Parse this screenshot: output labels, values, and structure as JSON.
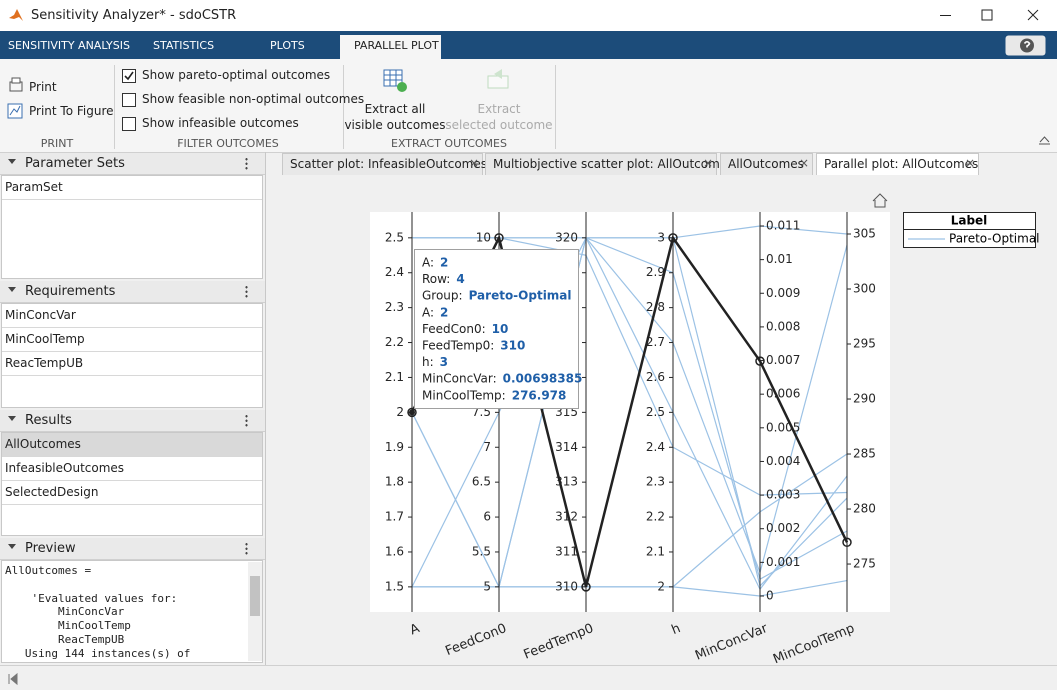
{
  "window": {
    "title": "Sensitivity Analyzer* - sdoCSTR"
  },
  "ribbon": {
    "tabs": [
      "SENSITIVITY ANALYSIS",
      "STATISTICS",
      "PLOTS",
      "PARALLEL PLOT"
    ],
    "active_tab": 3,
    "print": {
      "label": "PRINT",
      "buttons": [
        "Print",
        "Print To Figure"
      ]
    },
    "filter": {
      "label": "FILTER OUTCOMES",
      "options": [
        {
          "text": "Show pareto-optimal outcomes",
          "checked": true
        },
        {
          "text": "Show feasible non-optimal outcomes",
          "checked": false
        },
        {
          "text": "Show infeasible outcomes",
          "checked": false
        }
      ]
    },
    "extract": {
      "label": "EXTRACT OUTCOMES",
      "buttons": [
        {
          "lines": [
            "Extract all",
            "visible outcomes"
          ],
          "enabled": true
        },
        {
          "lines": [
            "Extract",
            "selected outcome"
          ],
          "enabled": false
        }
      ]
    }
  },
  "panels": [
    {
      "title": "Parameter Sets",
      "items": [
        "ParamSet"
      ]
    },
    {
      "title": "Requirements",
      "items": [
        "MinConcVar",
        "MinCoolTemp",
        "ReacTempUB"
      ]
    },
    {
      "title": "Results",
      "items": [
        "AllOutcomes",
        "InfeasibleOutcomes",
        "SelectedDesign"
      ],
      "selected": 0
    },
    {
      "title": "Preview",
      "lines": [
        "AllOutcomes =",
        "    'Evaluated values for:",
        "        MinConcVar",
        "        MinCoolTemp",
        "        ReacTempUB",
        "   Using 144 instances(s) of"
      ]
    }
  ],
  "documents": {
    "tabs": [
      "Scatter plot: InfeasibleOutcomes",
      "Multiobjective scatter plot: AllOutcomes",
      "AllOutcomes",
      "Parallel plot: AllOutcomes"
    ],
    "active": 3
  },
  "plot": {
    "type": "parallel",
    "axes": [
      {
        "name": "A",
        "lim": [
          1.428,
          2.574
        ],
        "ticks": [
          1.5,
          1.6,
          1.7,
          1.8,
          1.9,
          2,
          2.1,
          2.2,
          2.3,
          2.4,
          2.5
        ]
      },
      {
        "name": "FeedCon0",
        "lim": [
          4.64,
          10.37
        ],
        "ticks": [
          5,
          5.5,
          6,
          6.5,
          7,
          7.5,
          8,
          8.5,
          9,
          9.5,
          10
        ]
      },
      {
        "name": "FeedTemp0",
        "lim": [
          309.28,
          320.74
        ],
        "ticks": [
          310,
          311,
          312,
          313,
          314,
          315,
          316,
          317,
          318,
          319,
          320
        ]
      },
      {
        "name": "h",
        "lim": [
          1.928,
          3.074
        ],
        "ticks": [
          2,
          2.1,
          2.2,
          2.3,
          2.4,
          2.5,
          2.6,
          2.7,
          2.8,
          2.9,
          3
        ]
      },
      {
        "name": "MinConcVar",
        "lim": [
          -0.000476,
          0.011416
        ],
        "ticks": [
          0,
          0.001,
          0.002,
          0.003,
          0.004,
          0.005,
          0.006,
          0.007,
          0.008,
          0.009,
          0.01,
          0.011
        ]
      },
      {
        "name": "MinCoolTemp",
        "lim": [
          270.64,
          307
        ],
        "ticks": [
          275,
          280,
          285,
          290,
          295,
          300,
          305
        ]
      }
    ],
    "series": [
      {
        "name": "Pareto-Optimal",
        "color": "#9cc2e5",
        "lines": [
          [
            2.5,
            10,
            320,
            3,
            0.011,
            305
          ],
          [
            1.5,
            5,
            310,
            2,
            0,
            273.5
          ],
          [
            2,
            5,
            320,
            2.5,
            0.0002,
            283
          ],
          [
            2.5,
            10,
            320,
            2.9,
            0.0005,
            278
          ],
          [
            1.5,
            5,
            310,
            2,
            0.0025,
            285
          ],
          [
            2,
            5,
            320,
            2.7,
            0.0007,
            304
          ],
          [
            1.5,
            7.5,
            320,
            3,
            0.0003,
            281
          ],
          [
            2.5,
            10,
            319.5,
            2.4,
            0.003,
            281.5
          ]
        ]
      }
    ],
    "selected": {
      "color": "#222222",
      "values": [
        2,
        10,
        310,
        3,
        0.00698385,
        276.978
      ]
    },
    "legend": {
      "title": "Label"
    },
    "datatip": [
      {
        "label": "A:",
        "value": 2
      },
      {
        "label": "Row:",
        "value": 4
      },
      {
        "label": "Group:",
        "value": "Pareto-Optimal"
      },
      {
        "label": "A:",
        "value": 2
      },
      {
        "label": "FeedCon0:",
        "value": 10
      },
      {
        "label": "FeedTemp0:",
        "value": 310
      },
      {
        "label": "h:",
        "value": 3
      },
      {
        "label": "MinConcVar:",
        "value": 0.00698385
      },
      {
        "label": "MinCoolTemp:",
        "value": 276.978
      }
    ]
  }
}
